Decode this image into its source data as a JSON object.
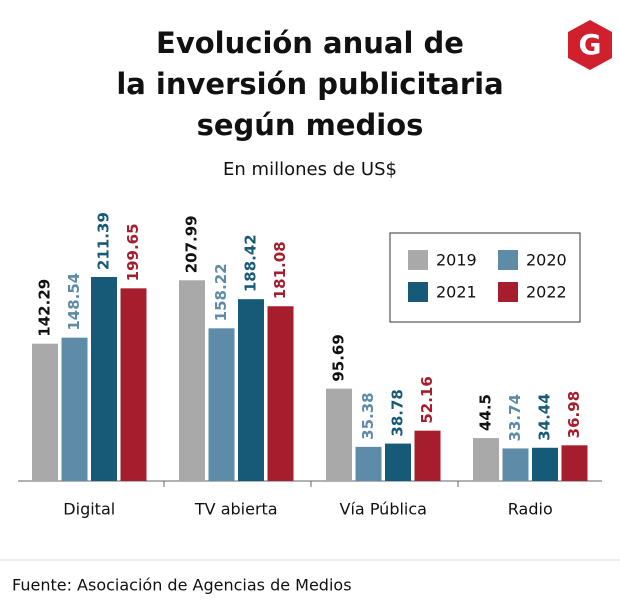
{
  "logo": "G",
  "chart_data": {
    "type": "bar",
    "title": [
      "Evolución anual de",
      "la inversión publicitaria",
      "según medios"
    ],
    "subtitle": "En millones de US$",
    "categories": [
      "Digital",
      "TV abierta",
      "Vía Pública",
      "Radio"
    ],
    "series": [
      {
        "name": "2019",
        "color": "#aaa9a9",
        "label_color": "#111111",
        "values": [
          142.29,
          207.99,
          95.69,
          44.5
        ]
      },
      {
        "name": "2020",
        "color": "#5e8ba7",
        "label_color": "#5e8ba7",
        "values": [
          148.54,
          158.22,
          35.38,
          33.74
        ]
      },
      {
        "name": "2021",
        "color": "#175a78",
        "label_color": "#175a78",
        "values": [
          211.39,
          188.42,
          38.78,
          34.44
        ]
      },
      {
        "name": "2022",
        "color": "#a61d2d",
        "label_color": "#a61d2d",
        "values": [
          199.65,
          181.08,
          52.16,
          36.98
        ]
      }
    ],
    "legend": "upper right",
    "source": "Fuente: Asociación de Agencias de Medios"
  }
}
